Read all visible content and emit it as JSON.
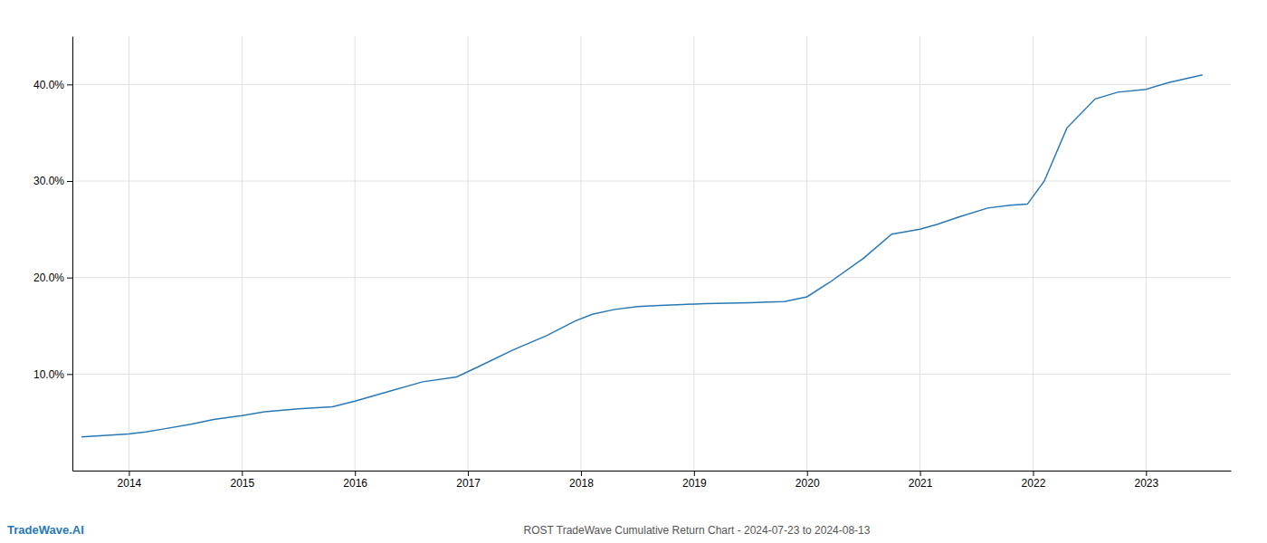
{
  "chart_data": {
    "type": "line",
    "title": "ROST TradeWave Cumulative Return Chart - 2024-07-23 to 2024-08-13",
    "annotations": [
      "TradeWave.AI"
    ],
    "color": "#2878b5",
    "grid": true,
    "x": [
      2013.58,
      2014.0,
      2014.15,
      2014.3,
      2014.55,
      2014.75,
      2015.0,
      2015.2,
      2015.5,
      2015.8,
      2016.0,
      2016.3,
      2016.6,
      2016.9,
      2017.1,
      2017.4,
      2017.7,
      2017.95,
      2018.1,
      2018.3,
      2018.5,
      2018.7,
      2018.9,
      2019.1,
      2019.3,
      2019.5,
      2019.65,
      2019.8,
      2020.0,
      2020.2,
      2020.5,
      2020.75,
      2021.0,
      2021.15,
      2021.35,
      2021.6,
      2021.8,
      2021.95,
      2022.1,
      2022.3,
      2022.55,
      2022.75,
      2023.0,
      2023.2,
      2023.5
    ],
    "values": [
      3.5,
      3.8,
      4.0,
      4.3,
      4.8,
      5.3,
      5.7,
      6.1,
      6.4,
      6.6,
      7.2,
      8.2,
      9.2,
      9.7,
      10.8,
      12.5,
      14.0,
      15.5,
      16.2,
      16.7,
      17.0,
      17.1,
      17.2,
      17.3,
      17.35,
      17.4,
      17.45,
      17.5,
      18.0,
      19.5,
      22.0,
      24.5,
      25.0,
      25.5,
      26.3,
      27.2,
      27.5,
      27.6,
      30.0,
      35.5,
      38.5,
      39.2,
      39.5,
      40.2,
      41.0
    ],
    "xlim": [
      2013.5,
      2023.75
    ],
    "xticks": [
      2014,
      2015,
      2016,
      2017,
      2018,
      2019,
      2020,
      2021,
      2022,
      2023
    ],
    "ylim": [
      0,
      45
    ],
    "yticks": [
      {
        "value": 10.0,
        "label": "10.0%"
      },
      {
        "value": 20.0,
        "label": "20.0%"
      },
      {
        "value": 30.0,
        "label": "30.0%"
      },
      {
        "value": 40.0,
        "label": "40.0%"
      }
    ]
  }
}
